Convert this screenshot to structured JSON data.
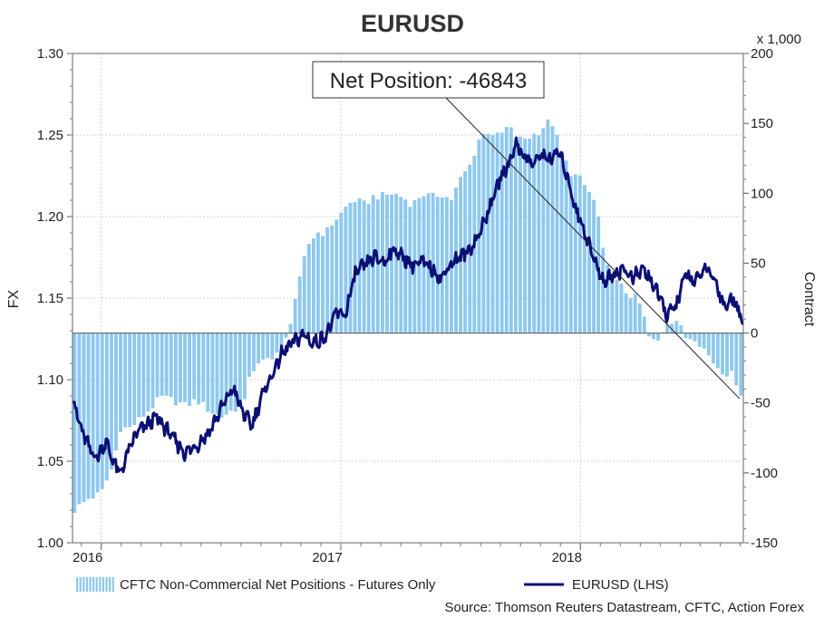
{
  "chart_data": {
    "type": "bar+line",
    "title": "EURUSD",
    "left_axis": {
      "label": "FX",
      "ylim": [
        1.0,
        1.3
      ],
      "ticks": [
        "1.00",
        "1.05",
        "1.10",
        "1.15",
        "1.20",
        "1.25",
        "1.30"
      ]
    },
    "right_axis": {
      "label": "Contract",
      "unit": "x 1,000",
      "ylim": [
        -150,
        200
      ],
      "ticks": [
        "-150",
        "-100",
        "-50",
        "0",
        "50",
        "100",
        "150",
        "200"
      ]
    },
    "x_axis": {
      "ticks": [
        "2016",
        "2017",
        "2018"
      ]
    },
    "annotation": "Net Position: -46843",
    "legend": {
      "bars": "CFTC Non-Commercial Net Positions - Futures Only",
      "line": "EURUSD (LHS)"
    },
    "source": "Source: Thomson Reuters Datastream, CFTC, Action Forex",
    "bar_color": "#8ec8ee",
    "line_color": "#0b0f73",
    "series_bars_anchors": [
      [
        2015.88,
        -128
      ],
      [
        2015.95,
        -118
      ],
      [
        2016.0,
        -115
      ],
      [
        2016.05,
        -95
      ],
      [
        2016.08,
        -68
      ],
      [
        2016.12,
        -68
      ],
      [
        2016.16,
        -62
      ],
      [
        2016.2,
        -55
      ],
      [
        2016.25,
        -46
      ],
      [
        2016.3,
        -48
      ],
      [
        2016.35,
        -52
      ],
      [
        2016.4,
        -48
      ],
      [
        2016.45,
        -55
      ],
      [
        2016.5,
        -60
      ],
      [
        2016.55,
        -55
      ],
      [
        2016.6,
        -50
      ],
      [
        2016.62,
        -28
      ],
      [
        2016.66,
        -23
      ],
      [
        2016.7,
        -18
      ],
      [
        2016.75,
        -12
      ],
      [
        2016.78,
        -2
      ],
      [
        2016.8,
        18
      ],
      [
        2016.83,
        38
      ],
      [
        2016.86,
        62
      ],
      [
        2016.9,
        72
      ],
      [
        2016.94,
        72
      ],
      [
        2016.97,
        80
      ],
      [
        2017.0,
        85
      ],
      [
        2017.03,
        92
      ],
      [
        2017.06,
        95
      ],
      [
        2017.1,
        92
      ],
      [
        2017.14,
        98
      ],
      [
        2017.18,
        98
      ],
      [
        2017.22,
        100
      ],
      [
        2017.26,
        97
      ],
      [
        2017.3,
        92
      ],
      [
        2017.34,
        100
      ],
      [
        2017.38,
        97
      ],
      [
        2017.42,
        100
      ],
      [
        2017.46,
        95
      ],
      [
        2017.5,
        110
      ],
      [
        2017.54,
        120
      ],
      [
        2017.58,
        140
      ],
      [
        2017.62,
        145
      ],
      [
        2017.66,
        140
      ],
      [
        2017.7,
        148
      ],
      [
        2017.74,
        138
      ],
      [
        2017.78,
        140
      ],
      [
        2017.82,
        143
      ],
      [
        2017.86,
        150
      ],
      [
        2017.88,
        152
      ],
      [
        2017.92,
        130
      ],
      [
        2017.96,
        115
      ],
      [
        2018.0,
        110
      ],
      [
        2018.04,
        100
      ],
      [
        2018.07,
        90
      ],
      [
        2018.1,
        52
      ],
      [
        2018.13,
        40
      ],
      [
        2018.16,
        35
      ],
      [
        2018.2,
        28
      ],
      [
        2018.23,
        25
      ],
      [
        2018.26,
        18
      ],
      [
        2018.28,
        -2
      ],
      [
        2018.32,
        -8
      ],
      [
        2018.36,
        8
      ],
      [
        2018.4,
        10
      ],
      [
        2018.44,
        -3
      ],
      [
        2018.48,
        -3
      ],
      [
        2018.52,
        -12
      ],
      [
        2018.56,
        -22
      ],
      [
        2018.6,
        -28
      ],
      [
        2018.64,
        -30
      ],
      [
        2018.68,
        -47
      ]
    ],
    "series_line_anchors": [
      [
        2015.88,
        1.09
      ],
      [
        2015.91,
        1.072
      ],
      [
        2015.95,
        1.058
      ],
      [
        2015.98,
        1.052
      ],
      [
        2016.02,
        1.062
      ],
      [
        2016.05,
        1.05
      ],
      [
        2016.08,
        1.042
      ],
      [
        2016.11,
        1.055
      ],
      [
        2016.15,
        1.068
      ],
      [
        2016.19,
        1.072
      ],
      [
        2016.23,
        1.077
      ],
      [
        2016.27,
        1.07
      ],
      [
        2016.31,
        1.062
      ],
      [
        2016.35,
        1.055
      ],
      [
        2016.4,
        1.06
      ],
      [
        2016.45,
        1.068
      ],
      [
        2016.5,
        1.082
      ],
      [
        2016.55,
        1.095
      ],
      [
        2016.59,
        1.08
      ],
      [
        2016.63,
        1.072
      ],
      [
        2016.67,
        1.09
      ],
      [
        2016.71,
        1.102
      ],
      [
        2016.75,
        1.115
      ],
      [
        2016.78,
        1.12
      ],
      [
        2016.82,
        1.125
      ],
      [
        2016.85,
        1.128
      ],
      [
        2016.88,
        1.122
      ],
      [
        2016.92,
        1.125
      ],
      [
        2016.95,
        1.13
      ],
      [
        2016.98,
        1.141
      ],
      [
        2017.02,
        1.14
      ],
      [
        2017.06,
        1.165
      ],
      [
        2017.1,
        1.17
      ],
      [
        2017.14,
        1.175
      ],
      [
        2017.18,
        1.172
      ],
      [
        2017.22,
        1.18
      ],
      [
        2017.26,
        1.175
      ],
      [
        2017.3,
        1.17
      ],
      [
        2017.34,
        1.172
      ],
      [
        2017.38,
        1.168
      ],
      [
        2017.42,
        1.162
      ],
      [
        2017.46,
        1.172
      ],
      [
        2017.5,
        1.175
      ],
      [
        2017.54,
        1.18
      ],
      [
        2017.58,
        1.19
      ],
      [
        2017.62,
        1.205
      ],
      [
        2017.66,
        1.222
      ],
      [
        2017.7,
        1.232
      ],
      [
        2017.73,
        1.245
      ],
      [
        2017.76,
        1.238
      ],
      [
        2017.8,
        1.232
      ],
      [
        2017.84,
        1.238
      ],
      [
        2017.88,
        1.235
      ],
      [
        2017.91,
        1.24
      ],
      [
        2017.95,
        1.222
      ],
      [
        2017.98,
        1.205
      ],
      [
        2018.02,
        1.19
      ],
      [
        2018.06,
        1.172
      ],
      [
        2018.1,
        1.16
      ],
      [
        2018.14,
        1.165
      ],
      [
        2018.18,
        1.168
      ],
      [
        2018.22,
        1.162
      ],
      [
        2018.26,
        1.168
      ],
      [
        2018.3,
        1.16
      ],
      [
        2018.33,
        1.15
      ],
      [
        2018.36,
        1.14
      ],
      [
        2018.4,
        1.145
      ],
      [
        2018.44,
        1.165
      ],
      [
        2018.48,
        1.16
      ],
      [
        2018.52,
        1.168
      ],
      [
        2018.56,
        1.162
      ],
      [
        2018.6,
        1.145
      ],
      [
        2018.64,
        1.15
      ],
      [
        2018.68,
        1.135
      ]
    ]
  }
}
